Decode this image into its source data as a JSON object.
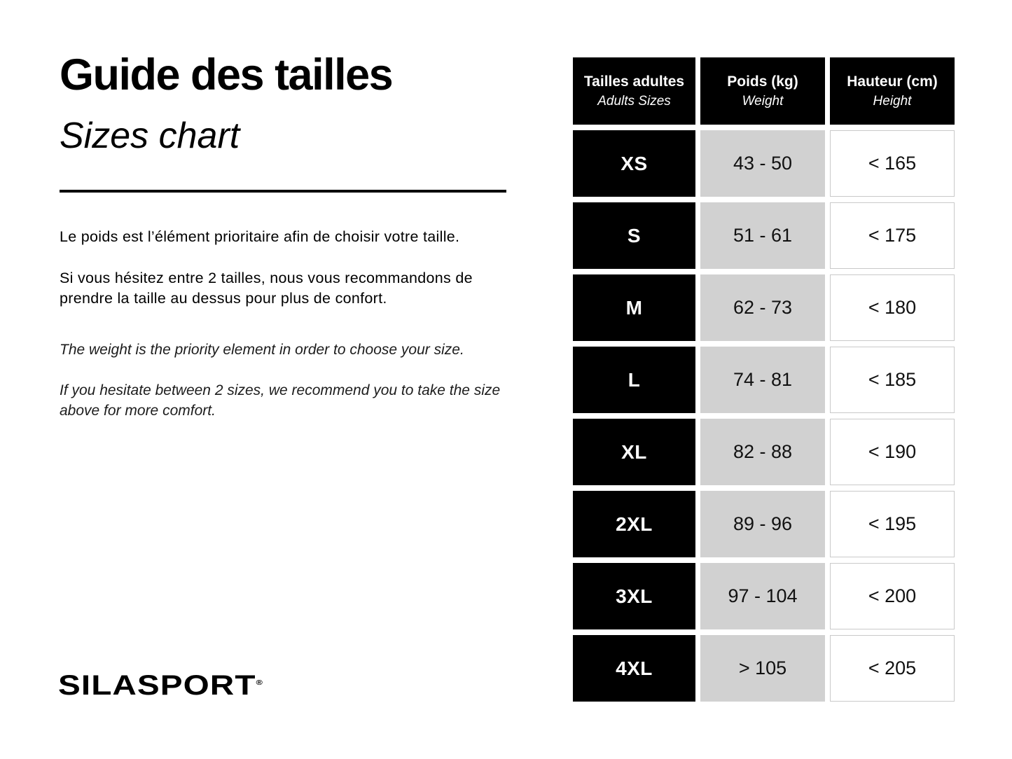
{
  "header": {
    "title_fr": "Guide des tailles",
    "title_en": "Sizes chart"
  },
  "intro": {
    "fr": [
      "Le poids est l’élément prioritaire afin de choisir votre taille.",
      "Si vous hésitez entre 2 tailles, nous vous recommandons de prendre la taille au dessus pour plus de confort."
    ],
    "en": [
      "The weight is the priority element in order to choose your size.",
      "If you hesitate between 2 sizes, we recommend you to take the size above for more comfort."
    ]
  },
  "size_table": {
    "columns": [
      {
        "label_fr": "Tailles adultes",
        "label_en": "Adults Sizes"
      },
      {
        "label_fr": "Poids (kg)",
        "label_en": "Weight"
      },
      {
        "label_fr": "Hauteur (cm)",
        "label_en": "Height"
      }
    ],
    "rows": [
      {
        "size": "XS",
        "weight_kg": "43 - 50",
        "height_cm": "< 165"
      },
      {
        "size": "S",
        "weight_kg": "51 - 61",
        "height_cm": "< 175"
      },
      {
        "size": "M",
        "weight_kg": "62 - 73",
        "height_cm": "< 180"
      },
      {
        "size": "L",
        "weight_kg": "74 - 81",
        "height_cm": "< 185"
      },
      {
        "size": "XL",
        "weight_kg": "82 - 88",
        "height_cm": "< 190"
      },
      {
        "size": "2XL",
        "weight_kg": "89 - 96",
        "height_cm": "< 195"
      },
      {
        "size": "3XL",
        "weight_kg": "97 - 104",
        "height_cm": "< 200"
      },
      {
        "size": "4XL",
        "weight_kg": "> 105",
        "height_cm": "< 205"
      }
    ]
  },
  "footer": {
    "brand": "SILASPORT",
    "registered_mark": "®"
  },
  "colors": {
    "cell_black": "#000000",
    "cell_gray": "#d1d1d1",
    "cell_white": "#ffffff",
    "cell_border": "#c9c9c9",
    "background": "#ffffff"
  }
}
